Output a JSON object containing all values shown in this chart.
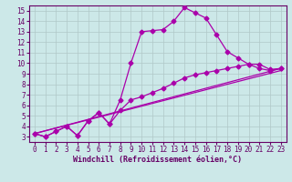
{
  "xlabel": "Windchill (Refroidissement éolien,°C)",
  "bg_color": "#cce8e8",
  "line_color": "#aa00aa",
  "grid_color": "#b0c8c8",
  "xlim": [
    -0.5,
    23.5
  ],
  "ylim": [
    2.5,
    15.5
  ],
  "xticks": [
    0,
    1,
    2,
    3,
    4,
    5,
    6,
    7,
    8,
    9,
    10,
    11,
    12,
    13,
    14,
    15,
    16,
    17,
    18,
    19,
    20,
    21,
    22,
    23
  ],
  "yticks": [
    3,
    4,
    5,
    6,
    7,
    8,
    9,
    10,
    11,
    12,
    13,
    14,
    15
  ],
  "line1_x": [
    0,
    1,
    2,
    3,
    4,
    5,
    6,
    7,
    8,
    9,
    10,
    11,
    12,
    13,
    14,
    15,
    16,
    17,
    18,
    19,
    20,
    21,
    22,
    23
  ],
  "line1_y": [
    3.3,
    3.0,
    3.5,
    4.0,
    3.1,
    4.5,
    5.3,
    4.2,
    6.5,
    10.0,
    13.0,
    13.1,
    13.2,
    14.0,
    15.3,
    14.8,
    14.3,
    12.7,
    11.1,
    10.5,
    9.9,
    9.5,
    9.3,
    9.5
  ],
  "line2_x": [
    0,
    1,
    2,
    3,
    4,
    5,
    6,
    7,
    8,
    9,
    10,
    11,
    12,
    13,
    14,
    15,
    16,
    17,
    18,
    19,
    20,
    21,
    22,
    23
  ],
  "line2_y": [
    3.3,
    3.0,
    3.5,
    4.0,
    3.1,
    4.5,
    5.3,
    4.2,
    5.5,
    6.5,
    6.8,
    7.2,
    7.6,
    8.1,
    8.6,
    8.9,
    9.1,
    9.3,
    9.5,
    9.7,
    9.9,
    9.9,
    9.4,
    9.5
  ],
  "line3_x": [
    0,
    23
  ],
  "line3_y": [
    3.3,
    9.5
  ],
  "line4_x": [
    0,
    23
  ],
  "line4_y": [
    3.3,
    9.3
  ],
  "marker_size": 2.5,
  "linewidth": 0.9,
  "font_size_tick": 5.5,
  "font_size_label": 6.0,
  "spine_color": "#660066",
  "tick_color": "#660066",
  "label_color": "#660066"
}
